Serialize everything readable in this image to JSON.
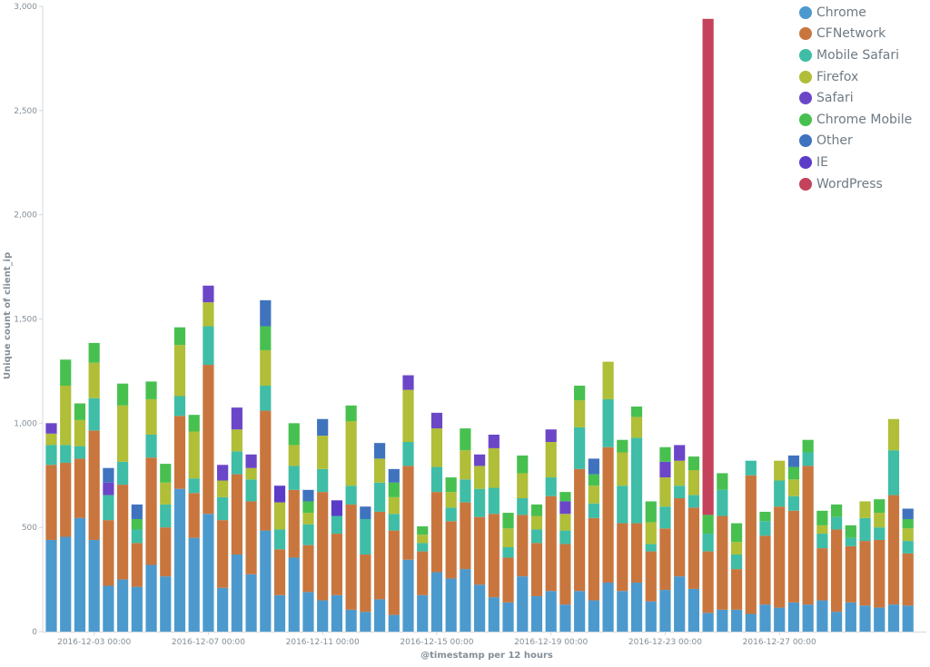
{
  "chart_data": {
    "type": "bar",
    "stacked": true,
    "xlabel": "@timestamp per 12 hours",
    "ylabel": "Unique count of client_ip",
    "ylim": [
      0,
      3000
    ],
    "y_ticks": [
      "0",
      "500",
      "1,000",
      "1,500",
      "2,000",
      "2,500",
      "3,000"
    ],
    "x_tick_labels": [
      "2016-12-03 00:00",
      "2016-12-07 00:00",
      "2016-12-11 00:00",
      "2016-12-15 00:00",
      "2016-12-19 00:00",
      "2016-12-23 00:00",
      "2016-12-27 00:00"
    ],
    "grid": false,
    "legend_position": "top-right",
    "series": [
      {
        "name": "Chrome",
        "color": "#4C9ACD",
        "values": [
          440,
          455,
          545,
          440,
          220,
          250,
          215,
          320,
          265,
          685,
          450,
          565,
          210,
          370,
          275,
          485,
          175,
          355,
          190,
          150,
          175,
          105,
          95,
          155,
          80,
          345,
          175,
          285,
          255,
          300,
          225,
          165,
          140,
          265,
          170,
          195,
          130,
          195,
          150,
          235,
          195,
          235,
          145,
          200,
          265,
          205,
          90,
          105,
          105,
          85,
          130,
          115,
          140,
          130,
          150,
          95,
          140,
          125,
          115,
          130,
          125
        ]
      },
      {
        "name": "CFNetwork",
        "color": "#C8763E",
        "values": [
          360,
          355,
          285,
          525,
          315,
          455,
          210,
          515,
          235,
          350,
          215,
          715,
          325,
          385,
          350,
          575,
          220,
          325,
          225,
          520,
          295,
          505,
          275,
          420,
          405,
          450,
          210,
          385,
          275,
          320,
          325,
          400,
          215,
          295,
          255,
          455,
          290,
          585,
          395,
          650,
          325,
          285,
          240,
          295,
          375,
          390,
          295,
          450,
          195,
          665,
          330,
          485,
          440,
          665,
          250,
          395,
          270,
          310,
          325,
          525,
          250
        ]
      },
      {
        "name": "Mobile Safari",
        "color": "#3FBDA6",
        "values": [
          95,
          85,
          60,
          155,
          120,
          110,
          65,
          110,
          110,
          95,
          70,
          185,
          110,
          110,
          105,
          120,
          95,
          115,
          100,
          110,
          85,
          90,
          170,
          140,
          80,
          115,
          40,
          120,
          65,
          110,
          135,
          125,
          50,
          80,
          65,
          90,
          65,
          200,
          70,
          230,
          180,
          410,
          35,
          105,
          60,
          60,
          85,
          125,
          70,
          70,
          70,
          125,
          70,
          65,
          70,
          60,
          40,
          110,
          60,
          215,
          60
        ]
      },
      {
        "name": "Firefox",
        "color": "#B0BE38",
        "values": [
          55,
          285,
          125,
          170,
          0,
          270,
          0,
          170,
          105,
          245,
          225,
          115,
          80,
          105,
          55,
          170,
          130,
          100,
          55,
          160,
          0,
          310,
          0,
          115,
          80,
          250,
          40,
          185,
          75,
          140,
          110,
          190,
          90,
          120,
          65,
          170,
          80,
          130,
          85,
          180,
          160,
          100,
          105,
          140,
          120,
          120,
          0,
          0,
          60,
          0,
          0,
          95,
          80,
          0,
          40,
          0,
          0,
          80,
          70,
          150,
          60
        ]
      },
      {
        "name": "Safari",
        "color": "#6B47C8",
        "values": [
          50,
          0,
          0,
          0,
          60,
          0,
          0,
          0,
          0,
          0,
          0,
          80,
          75,
          105,
          65,
          0,
          0,
          0,
          0,
          0,
          0,
          0,
          0,
          0,
          0,
          70,
          0,
          75,
          0,
          0,
          55,
          65,
          0,
          0,
          0,
          60,
          60,
          0,
          0,
          0,
          0,
          0,
          0,
          75,
          75,
          0,
          0,
          0,
          0,
          0,
          0,
          0,
          0,
          0,
          0,
          0,
          0,
          0,
          0,
          0,
          0
        ]
      },
      {
        "name": "Chrome Mobile",
        "color": "#48C050",
        "values": [
          0,
          125,
          80,
          95,
          0,
          105,
          50,
          85,
          90,
          85,
          80,
          0,
          0,
          0,
          0,
          115,
          0,
          105,
          55,
          0,
          0,
          75,
          0,
          0,
          70,
          0,
          40,
          0,
          70,
          105,
          0,
          0,
          75,
          85,
          55,
          0,
          45,
          70,
          55,
          0,
          60,
          50,
          100,
          70,
          0,
          65,
          90,
          80,
          90,
          0,
          45,
          0,
          60,
          60,
          70,
          60,
          60,
          0,
          65,
          0,
          45
        ]
      },
      {
        "name": "Other",
        "color": "#3F73BE",
        "values": [
          0,
          0,
          0,
          0,
          70,
          0,
          70,
          0,
          0,
          0,
          0,
          0,
          0,
          0,
          0,
          125,
          0,
          0,
          55,
          80,
          0,
          0,
          60,
          75,
          65,
          0,
          0,
          0,
          0,
          0,
          0,
          0,
          0,
          0,
          0,
          0,
          0,
          0,
          75,
          0,
          0,
          0,
          0,
          0,
          0,
          0,
          0,
          0,
          0,
          0,
          0,
          0,
          55,
          0,
          0,
          0,
          0,
          0,
          0,
          0,
          50
        ]
      },
      {
        "name": "IE",
        "color": "#5B3CC8",
        "values": [
          0,
          0,
          0,
          0,
          0,
          0,
          0,
          0,
          0,
          0,
          0,
          0,
          0,
          0,
          0,
          0,
          80,
          0,
          0,
          0,
          75,
          0,
          0,
          0,
          0,
          0,
          0,
          0,
          0,
          0,
          0,
          0,
          0,
          0,
          0,
          0,
          0,
          0,
          0,
          0,
          0,
          0,
          0,
          0,
          0,
          0,
          0,
          0,
          0,
          0,
          0,
          0,
          0,
          0,
          0,
          0,
          0,
          0,
          0,
          0,
          0
        ]
      },
      {
        "name": "WordPress",
        "color": "#C4425B",
        "values": [
          0,
          0,
          0,
          0,
          0,
          0,
          0,
          0,
          0,
          0,
          0,
          0,
          0,
          0,
          0,
          0,
          0,
          0,
          0,
          0,
          0,
          0,
          0,
          0,
          0,
          0,
          0,
          0,
          0,
          0,
          0,
          0,
          0,
          0,
          0,
          0,
          0,
          0,
          0,
          0,
          0,
          0,
          0,
          0,
          0,
          0,
          2380,
          0,
          0,
          0,
          0,
          0,
          0,
          0,
          0,
          0,
          0,
          0,
          0,
          0,
          0
        ]
      }
    ]
  }
}
